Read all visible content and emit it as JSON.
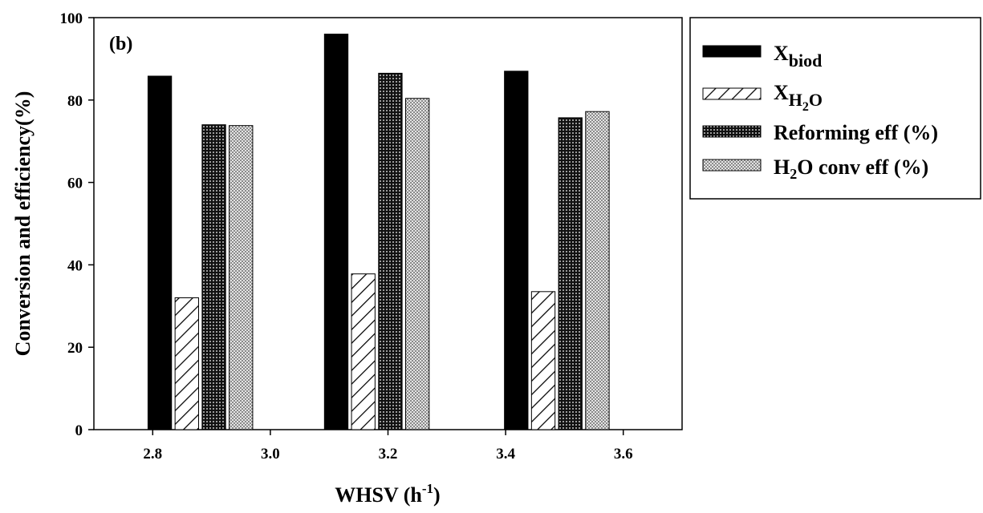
{
  "chart_data": {
    "type": "bar",
    "panel_label": "(b)",
    "xlabel": "WHSV (h⁻¹)",
    "xlabel_base": "WHSV (h",
    "xlabel_sup": "-1",
    "xlabel_end": ")",
    "ylabel": "Conversion and efficiency(%)",
    "xlim": [
      2.7,
      3.7
    ],
    "ylim": [
      0,
      100
    ],
    "xticks": [
      "2.8",
      "3.0",
      "3.2",
      "3.4",
      "3.6"
    ],
    "yticks": [
      "0",
      "20",
      "40",
      "60",
      "80",
      "100"
    ],
    "groups": [
      2.9,
      3.4,
      3.9
    ],
    "series": [
      {
        "name": "Xbiod",
        "name_main": "X",
        "name_sub": "biod",
        "pattern": "solid",
        "color": "#000000",
        "x": [
          2.812,
          3.112,
          3.418
        ],
        "values": [
          85.8,
          96.0,
          87.0
        ]
      },
      {
        "name": "XH2O",
        "name_main": "X",
        "name_sub": "H",
        "name_sub2": "2",
        "name_tail": "O",
        "pattern": "diagonal",
        "color": "#ffffff",
        "x": [
          2.858,
          3.158,
          3.464
        ],
        "values": [
          32.0,
          37.8,
          33.5
        ]
      },
      {
        "name": "Reforming eff (%)",
        "pattern": "dense-dots",
        "color": "#222222",
        "x": [
          2.904,
          3.204,
          3.51
        ],
        "values": [
          74.0,
          86.5,
          75.7
        ]
      },
      {
        "name": "H2O conv eff (%)",
        "name_main": "H",
        "name_sub": "2",
        "name_tail": "O conv eff (%)",
        "pattern": "crosshatch",
        "color": "#bbbbbb",
        "x": [
          2.95,
          3.25,
          3.556
        ],
        "values": [
          73.8,
          80.4,
          77.2
        ]
      }
    ],
    "legend_position": "outside-right-top"
  }
}
